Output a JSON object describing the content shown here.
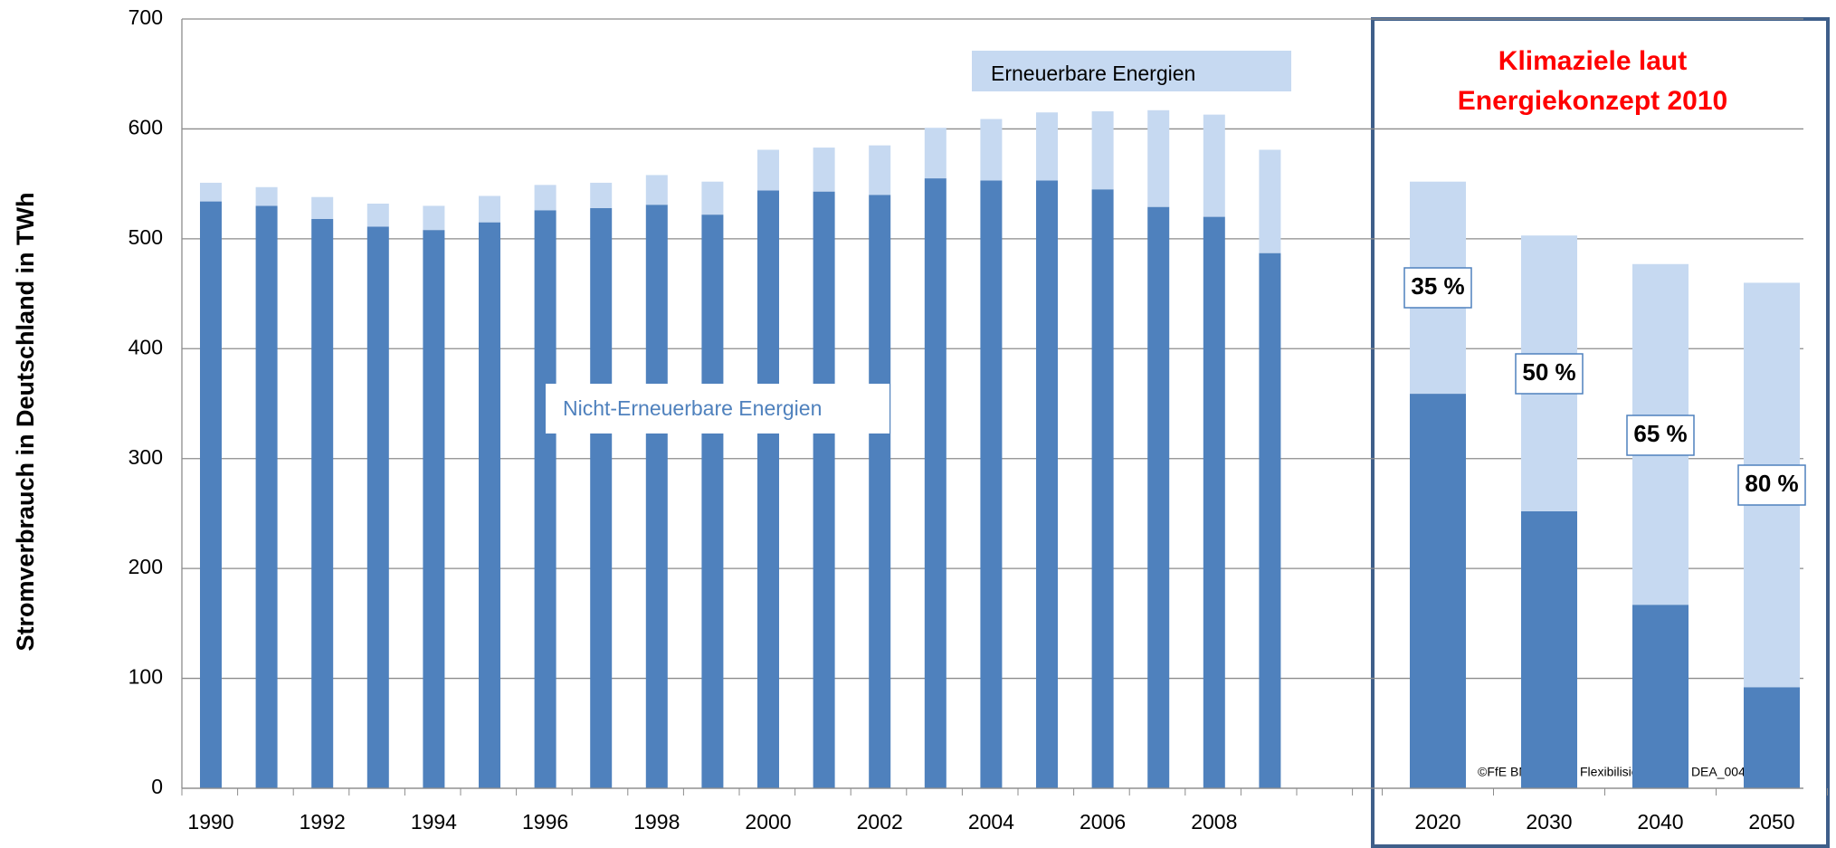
{
  "chart_data": {
    "type": "stacked_bar",
    "title_lines": [
      "Klimaziele laut",
      "Energiekonzept 2010"
    ],
    "ylabel": "Stromverbrauch in Deutschland in TWh",
    "categories": [
      "1990",
      null,
      "1992",
      null,
      "1994",
      null,
      "1996",
      null,
      "1998",
      null,
      "2000",
      null,
      "2002",
      null,
      "2004",
      null,
      "2006",
      null,
      "2008",
      null,
      "2020",
      "2030",
      "2040",
      "2050"
    ],
    "series": [
      {
        "name": "Nicht-Erneuerbare Energien",
        "color": "#4f81bd",
        "values": [
          534,
          530,
          518,
          511,
          508,
          515,
          526,
          528,
          531,
          522,
          544,
          543,
          540,
          555,
          553,
          553,
          545,
          529,
          520,
          487,
          359,
          252,
          167,
          92
        ]
      },
      {
        "name": "Erneuerbare Energien",
        "color": "#c6d9f1",
        "values": [
          17,
          17,
          20,
          21,
          22,
          24,
          23,
          23,
          27,
          30,
          37,
          40,
          45,
          46,
          56,
          62,
          71,
          88,
          93,
          94,
          193,
          251,
          310,
          368
        ]
      }
    ],
    "target_labels": [
      "35 %",
      "50 %",
      "65 %",
      "80 %"
    ],
    "source": "©FfE BMWi-0002 Flexibilisierung von DEA_00451",
    "ylim": [
      0,
      700
    ],
    "yticks": [
      0,
      100,
      200,
      300,
      400,
      500,
      600,
      700
    ],
    "grid": true
  }
}
